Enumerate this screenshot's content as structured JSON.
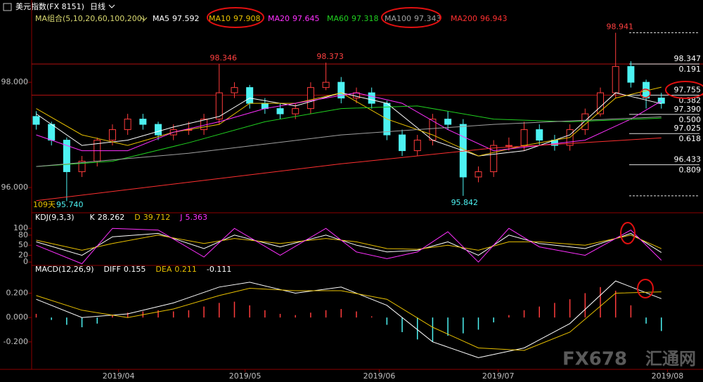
{
  "header": {
    "symbol": "美元指数(FX 8151)",
    "period": "日线"
  },
  "chart_data": [
    {
      "type": "candlestick",
      "ma_label": "MA组合(5,10,20,60,100,200)",
      "open": [
        97.35,
        97.2,
        96.9,
        96.3,
        96.5,
        96.9,
        97.1,
        97.3,
        97.2,
        97.0,
        97.1,
        97.1,
        97.3,
        97.8,
        97.9,
        97.6,
        97.5,
        97.4,
        97.5,
        97.9,
        98.0,
        97.7,
        97.8,
        97.6,
        97.0,
        96.7,
        96.9,
        97.3,
        97.2,
        96.2,
        96.3,
        96.8,
        96.8,
        97.1,
        96.9,
        96.8,
        97.1,
        97.4,
        97.8,
        98.3,
        98.0,
        97.7
      ],
      "high": [
        97.45,
        97.25,
        96.95,
        96.6,
        96.95,
        97.2,
        97.4,
        97.4,
        97.25,
        97.2,
        97.25,
        97.4,
        98.346,
        98.0,
        97.95,
        97.7,
        97.6,
        97.6,
        98.0,
        98.373,
        98.1,
        97.9,
        97.9,
        97.65,
        97.1,
        97.0,
        97.4,
        97.45,
        97.3,
        96.4,
        96.9,
        96.95,
        97.25,
        97.2,
        97.0,
        97.2,
        97.5,
        97.9,
        98.941,
        98.4,
        98.05,
        97.8
      ],
      "low": [
        97.1,
        96.8,
        95.74,
        96.2,
        96.4,
        96.8,
        97.0,
        97.1,
        96.9,
        96.9,
        97.0,
        97.0,
        97.2,
        97.7,
        97.5,
        97.4,
        97.3,
        97.3,
        97.4,
        97.85,
        97.6,
        97.6,
        97.5,
        96.9,
        96.6,
        96.6,
        96.8,
        97.1,
        95.842,
        96.1,
        96.2,
        96.7,
        96.7,
        96.8,
        96.7,
        96.7,
        97.0,
        97.35,
        97.7,
        97.9,
        97.5,
        97.5
      ],
      "close": [
        97.2,
        96.9,
        96.3,
        96.5,
        96.9,
        97.1,
        97.3,
        97.2,
        97.0,
        97.1,
        97.1,
        97.3,
        97.8,
        97.9,
        97.6,
        97.5,
        97.4,
        97.5,
        97.9,
        98.0,
        97.7,
        97.8,
        97.6,
        97.0,
        96.7,
        96.9,
        97.3,
        97.2,
        96.2,
        96.3,
        96.8,
        96.8,
        97.1,
        96.9,
        96.8,
        97.1,
        97.4,
        97.8,
        98.3,
        98.0,
        97.7,
        97.6
      ],
      "up_color": "#ff3c3c",
      "down_color": "#4df2f2",
      "xlim": [
        -0.3,
        43.5
      ],
      "xticks": [
        {
          "value": 5.4,
          "label": "2019/04"
        },
        {
          "value": 13.7,
          "label": "2019/05"
        },
        {
          "value": 22.5,
          "label": "2019/06"
        },
        {
          "value": 30.3,
          "label": "2019/07"
        },
        {
          "value": 41.4,
          "label": "2019/08"
        }
      ],
      "ylim": [
        95.56,
        99.43
      ],
      "yticks": [
        {
          "value": 98,
          "label": "98.000"
        },
        {
          "value": 96,
          "label": "96.000"
        }
      ],
      "series": [
        {
          "name": "MA5",
          "color": "#ffffff",
          "x": [
            0,
            3,
            6,
            9,
            12,
            14,
            17,
            20,
            23,
            26,
            29,
            32,
            35,
            38,
            41
          ],
          "values": [
            97.4,
            96.8,
            96.9,
            97.15,
            97.35,
            97.7,
            97.55,
            97.8,
            97.6,
            96.9,
            96.6,
            96.7,
            97.0,
            97.8,
            97.592
          ]
        },
        {
          "name": "MA10",
          "color": "#e8c000",
          "x": [
            0,
            3,
            6,
            9,
            12,
            14,
            17,
            20,
            23,
            26,
            29,
            32,
            35,
            38,
            41
          ],
          "values": [
            97.5,
            97.0,
            96.8,
            97.05,
            97.2,
            97.6,
            97.6,
            97.8,
            97.3,
            97.0,
            96.6,
            96.8,
            96.95,
            97.7,
            97.908
          ]
        },
        {
          "name": "MA20",
          "color": "#ff30ff",
          "x": [
            0,
            3,
            6,
            9,
            12,
            15,
            18,
            21,
            24,
            27,
            30,
            33,
            36,
            39,
            41
          ],
          "values": [
            97.0,
            96.7,
            96.7,
            97.05,
            97.25,
            97.5,
            97.65,
            97.8,
            97.6,
            97.1,
            96.7,
            96.8,
            96.9,
            97.3,
            97.645
          ]
        },
        {
          "name": "MA60",
          "color": "#20d020",
          "x": [
            0,
            5,
            10,
            15,
            20,
            25,
            30,
            35,
            41
          ],
          "values": [
            96.4,
            96.5,
            96.85,
            97.25,
            97.5,
            97.55,
            97.3,
            97.25,
            97.318
          ]
        },
        {
          "name": "MA100",
          "color": "#a0a0a0",
          "x": [
            0,
            10,
            20,
            30,
            41
          ],
          "values": [
            96.4,
            96.65,
            97.0,
            97.2,
            97.343
          ]
        },
        {
          "name": "MA200",
          "color": "#ff3030",
          "x": [
            0,
            10,
            20,
            30,
            41
          ],
          "values": [
            95.75,
            96.1,
            96.45,
            96.75,
            96.943
          ]
        }
      ],
      "fib_levels": [
        {
          "value": 98.347,
          "label": "98.347",
          "ratio": "0.191"
        },
        {
          "value": 97.755,
          "label": "97.755",
          "ratio": "0.382"
        },
        {
          "value": 97.39,
          "label": "97.390",
          "ratio": "0.500"
        },
        {
          "value": 97.025,
          "label": "97.025",
          "ratio": "0.618"
        },
        {
          "value": 96.433,
          "label": "96.433",
          "ratio": "0.809"
        }
      ],
      "low_note": "109天",
      "low_label": "95.740"
    },
    {
      "type": "kdj",
      "title": "KDJ(9,3,3)",
      "ylim": [
        -10,
        115
      ],
      "yticks": [
        100,
        80,
        50,
        20,
        0
      ],
      "series": [
        {
          "name": "K",
          "color": "#ffffff",
          "x": [
            0,
            3,
            5,
            8,
            11,
            13,
            16,
            19,
            21,
            23,
            25,
            27,
            29,
            31,
            33,
            36,
            39,
            41
          ],
          "values": [
            60,
            20,
            75,
            85,
            40,
            80,
            45,
            80,
            50,
            30,
            35,
            60,
            20,
            80,
            55,
            40,
            85,
            28.262
          ]
        },
        {
          "name": "D",
          "color": "#e8c000",
          "x": [
            0,
            3,
            5,
            8,
            11,
            13,
            16,
            19,
            21,
            23,
            25,
            27,
            29,
            31,
            33,
            36,
            39,
            41
          ],
          "values": [
            65,
            35,
            55,
            80,
            55,
            70,
            55,
            70,
            60,
            40,
            38,
            50,
            35,
            60,
            60,
            50,
            80,
            39.712
          ]
        },
        {
          "name": "J",
          "color": "#ff30ff",
          "x": [
            0,
            3,
            5,
            8,
            11,
            13,
            16,
            19,
            21,
            23,
            25,
            27,
            29,
            31,
            33,
            36,
            39,
            41
          ],
          "values": [
            50,
            -5,
            100,
            95,
            15,
            100,
            20,
            100,
            30,
            10,
            30,
            90,
            0,
            100,
            45,
            20,
            95,
            5.363
          ]
        }
      ]
    },
    {
      "type": "macd",
      "title": "MACD(12,26,9)",
      "ylim": [
        -0.42,
        0.37
      ],
      "yticks": [
        {
          "value": 0.2,
          "label": "0.200"
        },
        {
          "value": 0,
          "label": "0.000"
        },
        {
          "value": -0.2,
          "label": "-0.200"
        }
      ],
      "histogram": [
        0.03,
        -0.02,
        -0.06,
        -0.08,
        -0.05,
        0.02,
        0.04,
        0.05,
        0.06,
        0.05,
        0.06,
        0.09,
        0.12,
        0.13,
        0.1,
        0.06,
        0.03,
        0.02,
        0.04,
        0.06,
        0.07,
        0.05,
        0.01,
        -0.06,
        -0.12,
        -0.18,
        -0.2,
        -0.15,
        -0.13,
        -0.1,
        -0.04,
        0.02,
        0.06,
        0.09,
        0.12,
        0.15,
        0.2,
        0.25,
        0.22,
        0.1,
        -0.05,
        -0.111
      ],
      "series": [
        {
          "name": "DIFF",
          "color": "#ffffff",
          "x": [
            0,
            3,
            6,
            9,
            12,
            14,
            17,
            20,
            23,
            26,
            29,
            32,
            35,
            38,
            41
          ],
          "values": [
            0.15,
            0.0,
            0.03,
            0.12,
            0.25,
            0.29,
            0.2,
            0.25,
            0.1,
            -0.2,
            -0.33,
            -0.25,
            -0.05,
            0.3,
            0.155
          ]
        },
        {
          "name": "DEA",
          "color": "#e8c000",
          "x": [
            0,
            3,
            6,
            9,
            12,
            14,
            17,
            20,
            23,
            26,
            29,
            32,
            35,
            38,
            41
          ],
          "values": [
            0.18,
            0.06,
            0.0,
            0.07,
            0.18,
            0.24,
            0.22,
            0.22,
            0.15,
            -0.08,
            -0.25,
            -0.27,
            -0.12,
            0.2,
            0.211
          ]
        }
      ]
    }
  ],
  "watermark": {
    "brand": "FX678",
    "name": "汇通网"
  }
}
